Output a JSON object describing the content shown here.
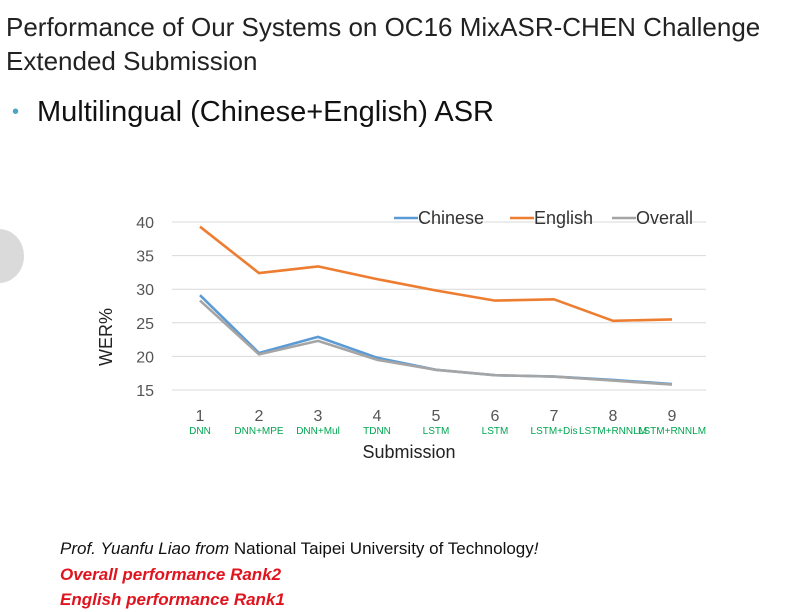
{
  "slide": {
    "title": "Performance of Our Systems on OC16 MixASR-CHEN Challenge Extended Submission",
    "bullet": "Multilingual (Chinese+English) ASR"
  },
  "chart_data": {
    "type": "line",
    "x": [
      1,
      2,
      3,
      4,
      5,
      6,
      7,
      8,
      9
    ],
    "tick_labels": [
      "1",
      "2",
      "3",
      "4",
      "5",
      "6",
      "7",
      "8",
      "9"
    ],
    "sublabels": [
      "DNN",
      "DNN+MPE",
      "DNN+Mul",
      "TDNN",
      "LSTM",
      "LSTM",
      "LSTM+Dis",
      "LSTM+RNNLM",
      "LSTM+RNNLM"
    ],
    "series": [
      {
        "name": "Chinese",
        "color": "#5b9bd5",
        "values": [
          29.1,
          20.5,
          22.9,
          19.8,
          18.0,
          17.2,
          17.0,
          16.5,
          15.9
        ]
      },
      {
        "name": "English",
        "color": "#ed7d31",
        "values": [
          39.3,
          32.4,
          33.4,
          31.5,
          29.8,
          28.3,
          28.5,
          25.3,
          25.5
        ]
      },
      {
        "name": "Overall",
        "color": "#a5a5a5",
        "values": [
          28.3,
          20.3,
          22.3,
          19.5,
          18.0,
          17.2,
          17.0,
          16.4,
          15.8
        ]
      }
    ],
    "xlabel": "Submission",
    "ylabel": "WER%",
    "ylim": [
      15,
      40
    ],
    "yticks": [
      15,
      20,
      25,
      30,
      35,
      40
    ],
    "grid": true,
    "legend_position": "top-right",
    "sublabel_color": "#00a650"
  },
  "footer": {
    "line1_italic_a": "Prof. Yuanfu Liao from",
    "line1_normal": " National Taipei University of Technology",
    "line1_italic_b": "!",
    "line2": "Overall performance Rank2",
    "line3": "English performance Rank1"
  }
}
